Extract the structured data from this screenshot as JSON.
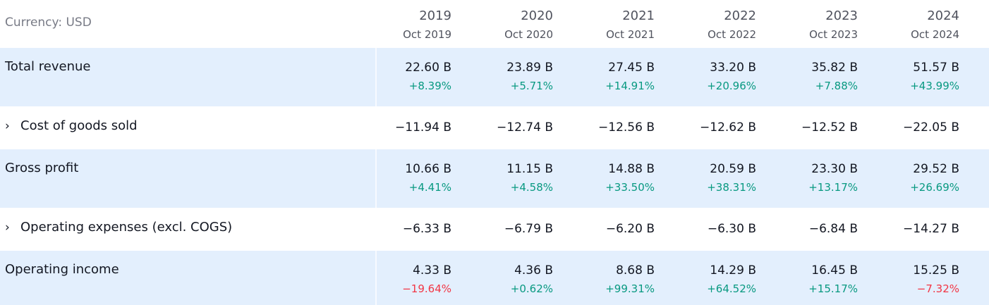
{
  "currency_label": "Currency: USD",
  "periods": [
    {
      "year": "2019",
      "date": "Oct 2019"
    },
    {
      "year": "2020",
      "date": "Oct 2020"
    },
    {
      "year": "2021",
      "date": "Oct 2021"
    },
    {
      "year": "2022",
      "date": "Oct 2022"
    },
    {
      "year": "2023",
      "date": "Oct 2023"
    },
    {
      "year": "2024",
      "date": "Oct 2024"
    }
  ],
  "rows": {
    "total_revenue": {
      "label": "Total revenue",
      "values": [
        "22.60 B",
        "23.89 B",
        "27.45 B",
        "33.20 B",
        "35.82 B",
        "51.57 B"
      ],
      "changes": [
        "+8.39%",
        "+5.71%",
        "+14.91%",
        "+20.96%",
        "+7.88%",
        "+43.99%"
      ]
    },
    "cogs": {
      "label": "Cost of goods sold",
      "expand_glyph": "›",
      "values": [
        "−11.94 B",
        "−12.74 B",
        "−12.56 B",
        "−12.62 B",
        "−12.52 B",
        "−22.05 B"
      ]
    },
    "gross_profit": {
      "label": "Gross profit",
      "values": [
        "10.66 B",
        "11.15 B",
        "14.88 B",
        "20.59 B",
        "23.30 B",
        "29.52 B"
      ],
      "changes": [
        "+4.41%",
        "+4.58%",
        "+33.50%",
        "+38.31%",
        "+13.17%",
        "+26.69%"
      ]
    },
    "opex": {
      "label": "Operating expenses (excl. COGS)",
      "expand_glyph": "›",
      "values": [
        "−6.33 B",
        "−6.79 B",
        "−6.20 B",
        "−6.30 B",
        "−6.84 B",
        "−14.27 B"
      ]
    },
    "operating_income": {
      "label": "Operating income",
      "values": [
        "4.33 B",
        "4.36 B",
        "8.68 B",
        "14.29 B",
        "16.45 B",
        "15.25 B"
      ],
      "changes": [
        "−19.64%",
        "+0.62%",
        "+99.31%",
        "+64.52%",
        "+15.17%",
        "−7.32%"
      ]
    }
  },
  "colors": {
    "positive": "#089981",
    "negative": "#f23645",
    "row_highlight": "#e3effd"
  }
}
